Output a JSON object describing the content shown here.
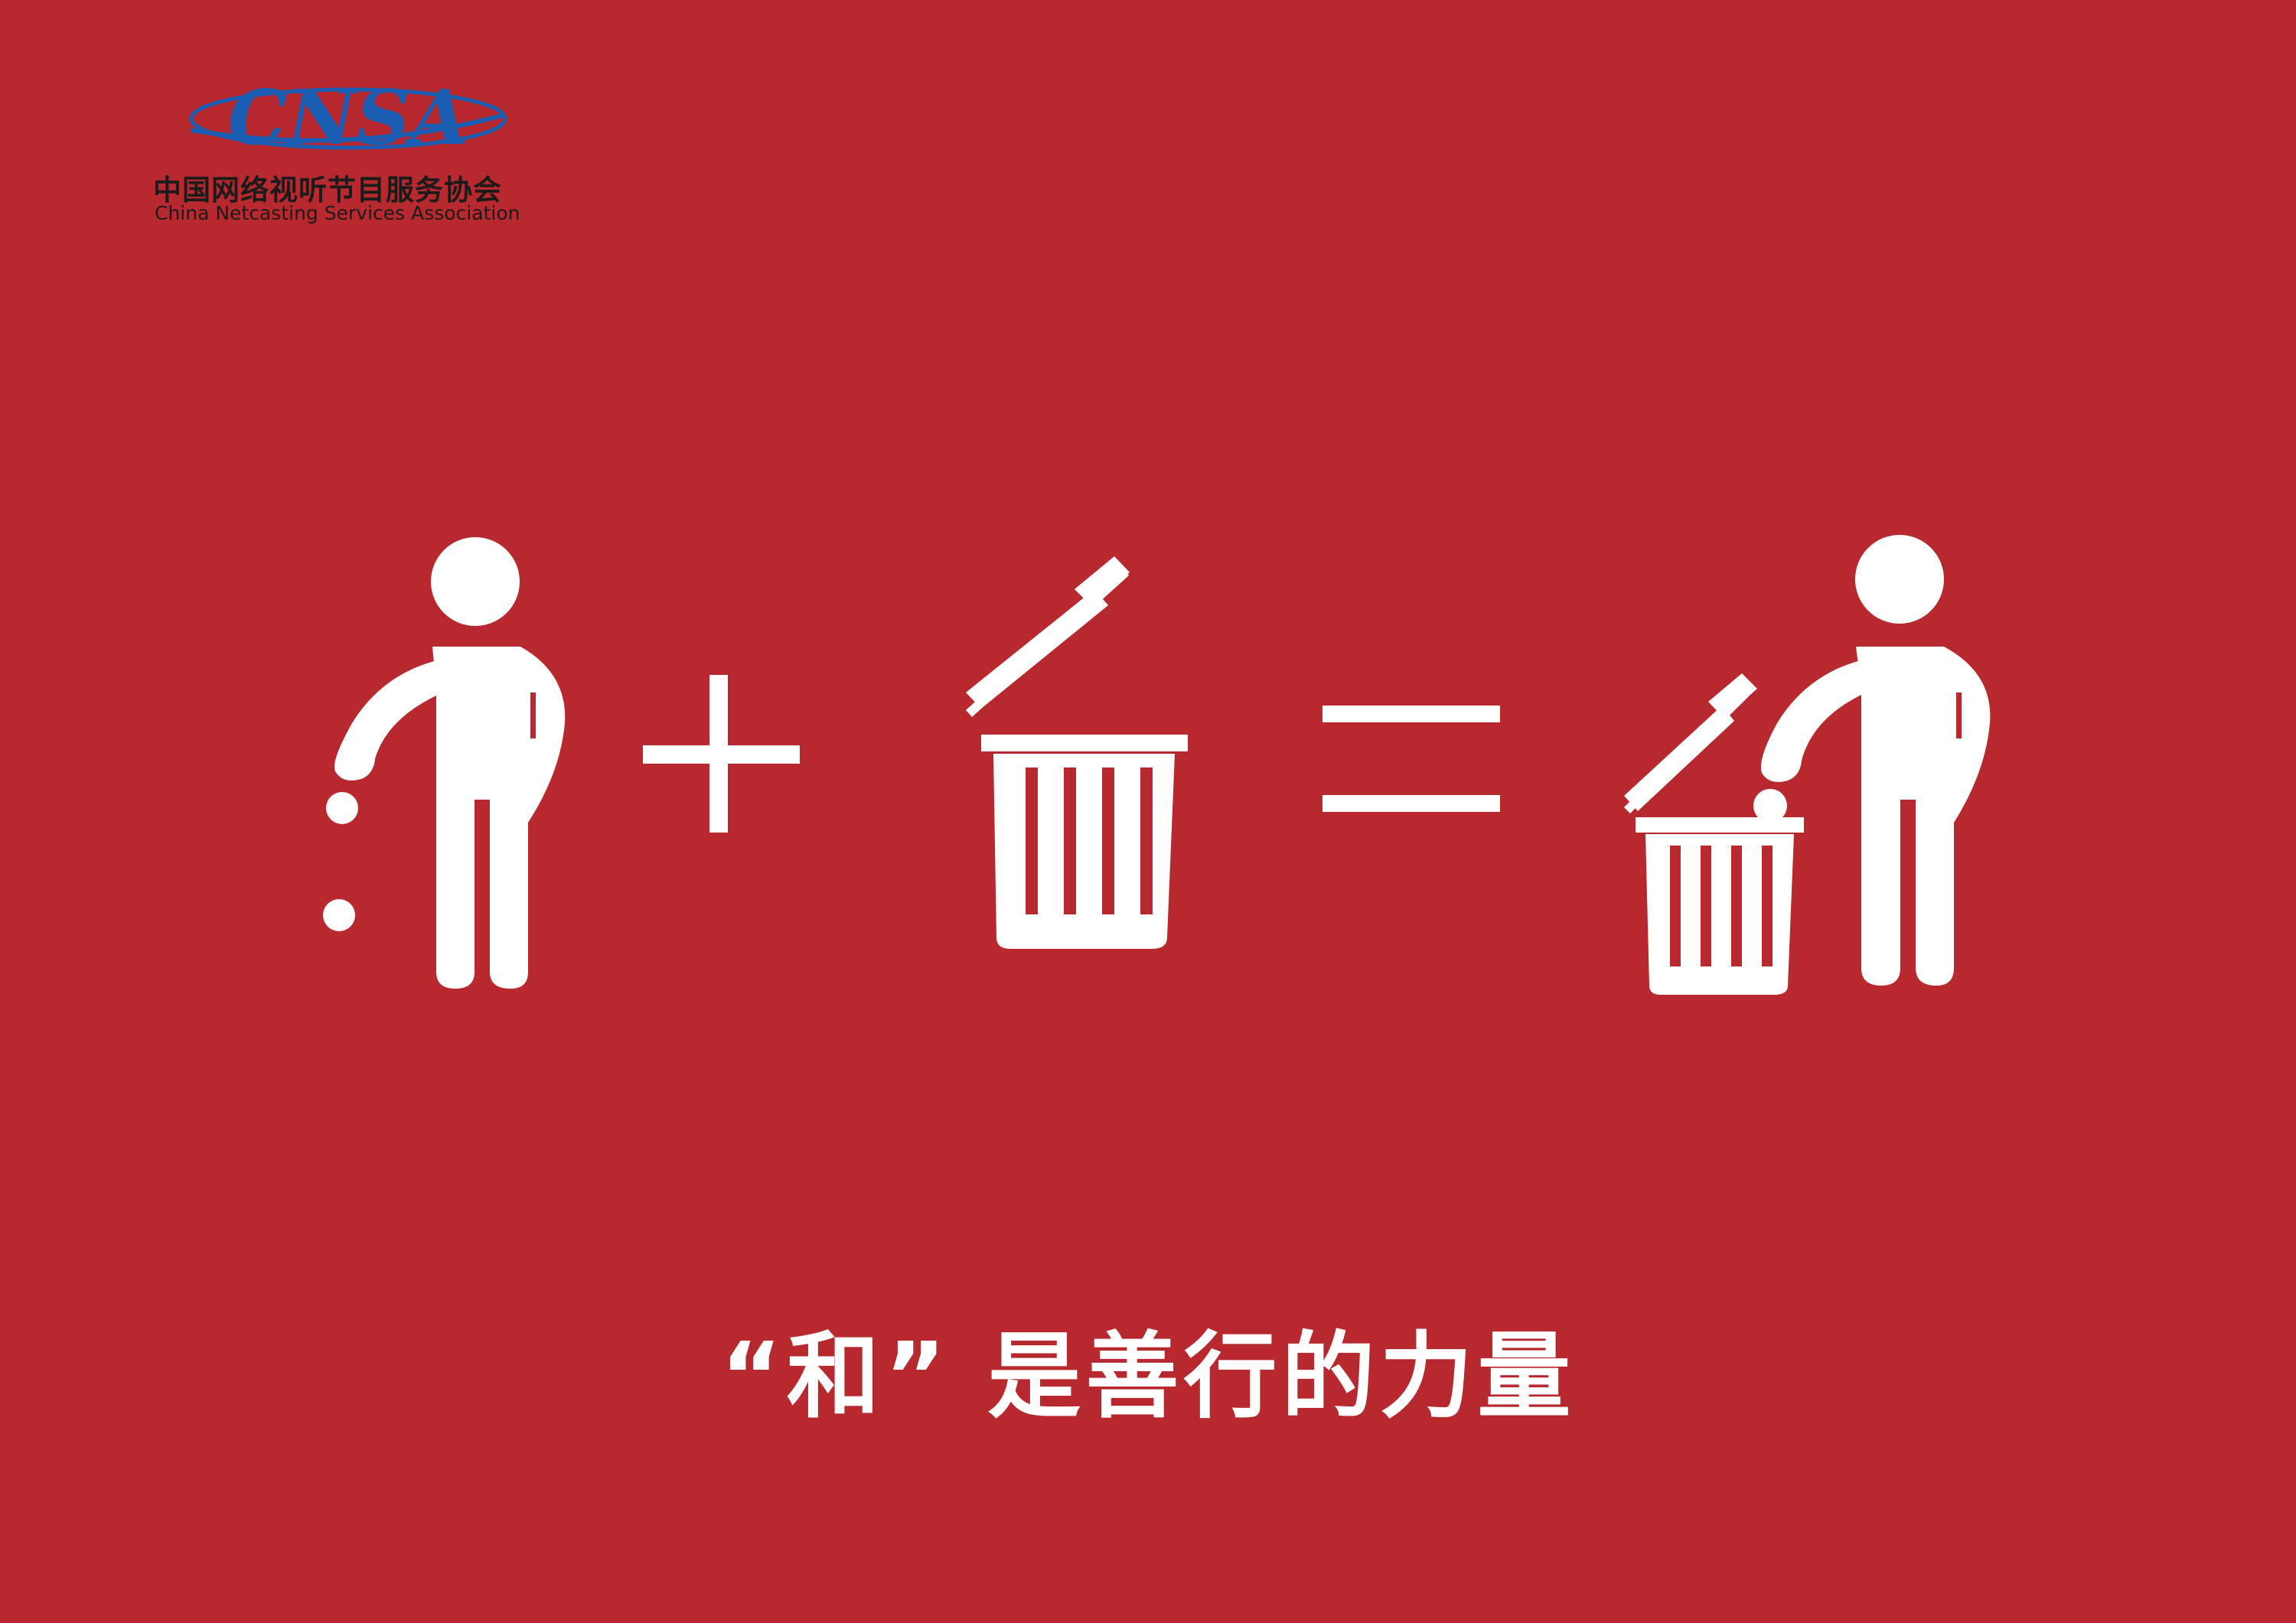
{
  "brand": {
    "logo_text": "CNSA",
    "name_cn": "中国网络视听节目服务协会",
    "name_en": "China Netcasting Services Association"
  },
  "equation": {
    "term1_icon": "person-dropping-litter-icon",
    "operator1_icon": "plus-icon",
    "term2_icon": "trash-can-open-icon",
    "operator2_icon": "equals-icon",
    "result_icon": "person-using-trash-can-icon"
  },
  "slogan": "“和” 是善行的力量",
  "colors": {
    "background": "#b8282f",
    "foreground": "#ffffff",
    "logo_blue": "#1a5fb4",
    "logo_text": "#1b1b1b"
  }
}
